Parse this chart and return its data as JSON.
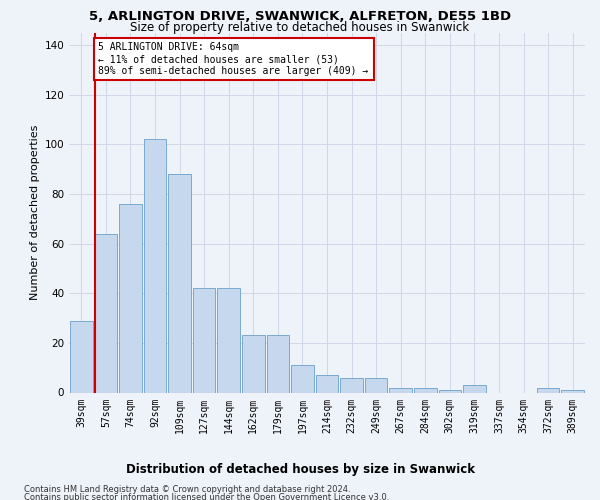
{
  "title": "5, ARLINGTON DRIVE, SWANWICK, ALFRETON, DE55 1BD",
  "subtitle": "Size of property relative to detached houses in Swanwick",
  "xlabel": "Distribution of detached houses by size in Swanwick",
  "ylabel": "Number of detached properties",
  "categories": [
    "39sqm",
    "57sqm",
    "74sqm",
    "92sqm",
    "109sqm",
    "127sqm",
    "144sqm",
    "162sqm",
    "179sqm",
    "197sqm",
    "214sqm",
    "232sqm",
    "249sqm",
    "267sqm",
    "284sqm",
    "302sqm",
    "319sqm",
    "337sqm",
    "354sqm",
    "372sqm",
    "389sqm"
  ],
  "values": [
    29,
    64,
    76,
    102,
    88,
    42,
    42,
    23,
    23,
    11,
    7,
    6,
    6,
    2,
    2,
    1,
    3,
    0,
    0,
    2,
    1
  ],
  "bar_color": "#c5d8ee",
  "bar_edge_color": "#6a9fcb",
  "grid_color": "#d0d8e8",
  "background_color": "#eef2f9",
  "vline_x_idx": 1,
  "vline_color": "#cc0000",
  "annotation_text_line1": "5 ARLINGTON DRIVE: 64sqm",
  "annotation_text_line2": "← 11% of detached houses are smaller (53)",
  "annotation_text_line3": "89% of semi-detached houses are larger (409) →",
  "annotation_box_color": "#ffffff",
  "annotation_box_edge": "#cc0000",
  "footnote1": "Contains HM Land Registry data © Crown copyright and database right 2024.",
  "footnote2": "Contains public sector information licensed under the Open Government Licence v3.0.",
  "ylim": [
    0,
    145
  ],
  "title_fontsize": 9.5,
  "subtitle_fontsize": 8.5,
  "ylabel_fontsize": 8,
  "xlabel_fontsize": 8.5,
  "annotation_fontsize": 7,
  "tick_fontsize": 7,
  "ytick_fontsize": 7.5,
  "footnote_fontsize": 6
}
